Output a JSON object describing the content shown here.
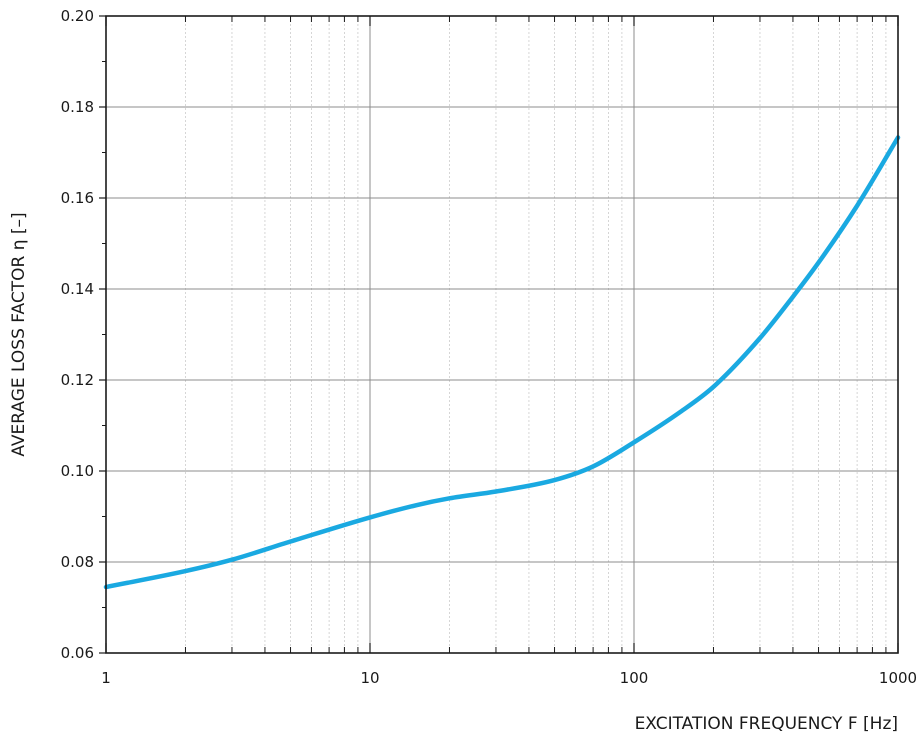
{
  "chart_data": {
    "type": "line",
    "xlabel": "EXCITATION FREQUENCY F [Hz]",
    "ylabel": "AVERAGE LOSS FACTOR η [–]",
    "xscale": "log",
    "xlim": [
      1,
      1000
    ],
    "ylim": [
      0.06,
      0.2
    ],
    "grid": true,
    "x_tick_labels": [
      "1",
      "10",
      "100",
      "1000"
    ],
    "y_tick_labels": [
      "0.06",
      "0.08",
      "0.10",
      "0.12",
      "0.14",
      "0.16",
      "0.18",
      "0.20"
    ],
    "series_color": "#1aa9e1",
    "series": [
      {
        "x": [
          1,
          2,
          3,
          5,
          10,
          15,
          20,
          30,
          50,
          70,
          100,
          150,
          200,
          300,
          400,
          500,
          700,
          1000
        ],
        "values": [
          0.0745,
          0.078,
          0.0805,
          0.0845,
          0.0898,
          0.0925,
          0.094,
          0.0955,
          0.098,
          0.101,
          0.1063,
          0.113,
          0.1185,
          0.1292,
          0.1383,
          0.1458,
          0.1583,
          0.1733
        ]
      }
    ]
  }
}
